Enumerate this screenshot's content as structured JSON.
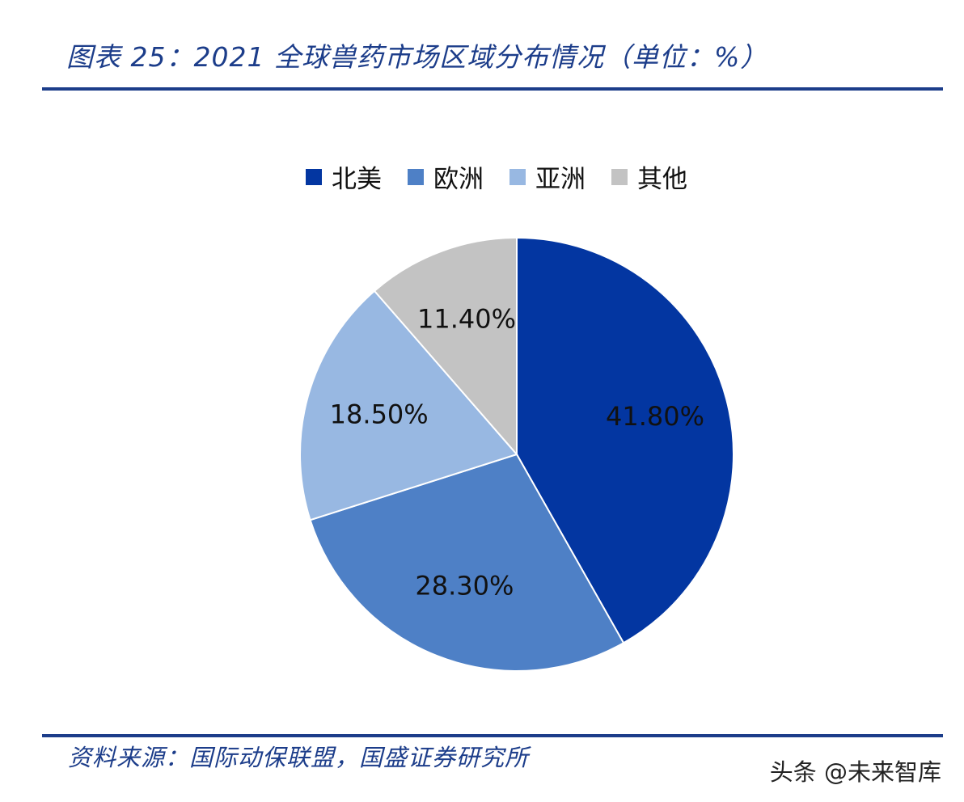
{
  "header": {
    "title": "图表 25：2021 全球兽药市场区域分布情况（单位：%）"
  },
  "footer": {
    "source": "资料来源：国际动保联盟，国盛证券研究所",
    "watermark": "头条 @未来智库"
  },
  "chart_data": {
    "type": "pie",
    "title": "",
    "categories": [
      "北美",
      "欧洲",
      "亚洲",
      "其他"
    ],
    "values": [
      41.8,
      28.3,
      18.5,
      11.4
    ],
    "value_labels": [
      "41.80%",
      "28.30%",
      "18.50%",
      "11.40%"
    ],
    "colors": [
      "#0336a1",
      "#4e80c6",
      "#98b8e2",
      "#c3c3c3"
    ],
    "start_angle": "12 o'clock",
    "direction": "clockwise",
    "legend_position": "top"
  }
}
